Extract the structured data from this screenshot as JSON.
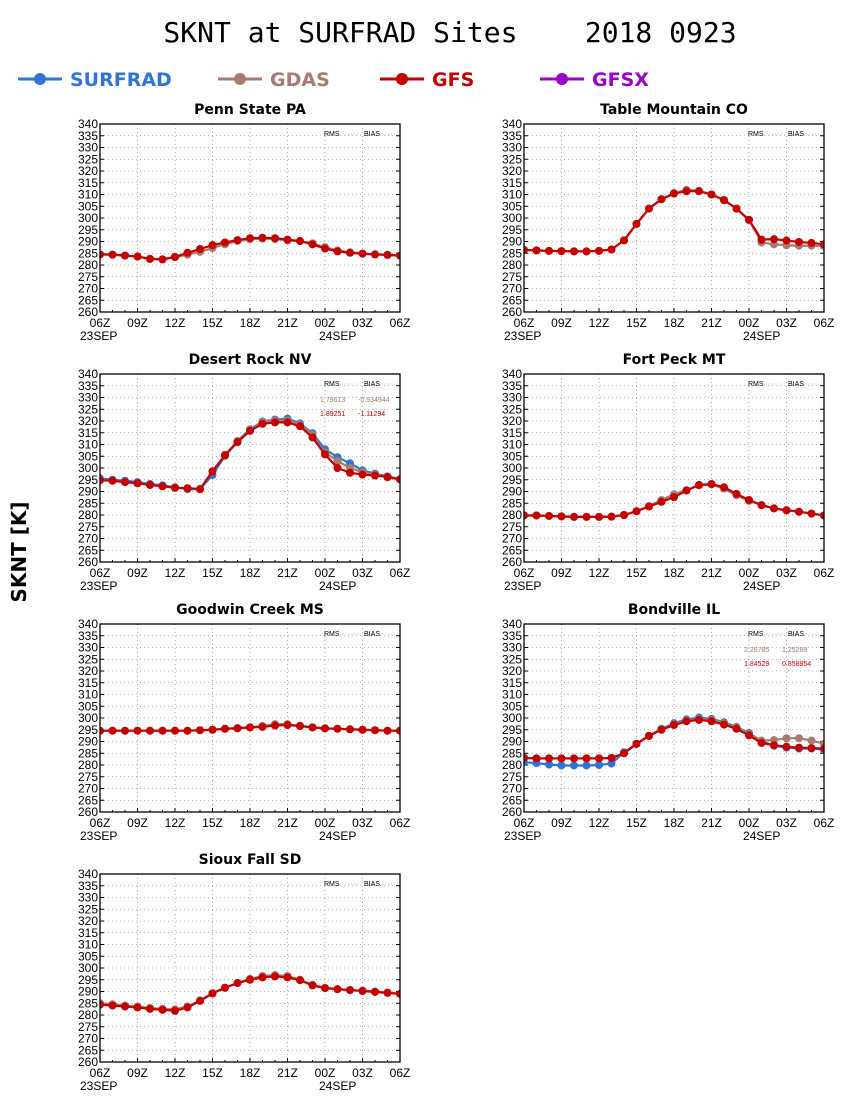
{
  "title": "SKNT at SURFRAD Sites    2018 0923",
  "ylabel": "SKNT [K]",
  "legend": [
    {
      "name": "SURFRAD",
      "color": "#2f74d6"
    },
    {
      "name": "GDAS",
      "color": "#a87a70"
    },
    {
      "name": "GFS",
      "color": "#c40000"
    },
    {
      "name": "GFSX",
      "color": "#9a00c8"
    }
  ],
  "stats_labels": {
    "rms": "RMS",
    "bias": "BIAS"
  },
  "chart_data": [
    {
      "type": "line",
      "title": "Penn State PA",
      "x": [
        0,
        1,
        2,
        3,
        4,
        5,
        6,
        7,
        8,
        9,
        10,
        11,
        12,
        13,
        14,
        15,
        16,
        17,
        18,
        19,
        20,
        21,
        22,
        23,
        24
      ],
      "xtick_labels": [
        "06Z",
        "09Z",
        "12Z",
        "15Z",
        "18Z",
        "21Z",
        "00Z",
        "03Z",
        "06Z"
      ],
      "date_labels": [
        "23SEP",
        "24SEP"
      ],
      "ylim": [
        260,
        340
      ],
      "yticks": [
        260,
        265,
        270,
        275,
        280,
        285,
        290,
        295,
        300,
        305,
        310,
        315,
        320,
        325,
        330,
        335,
        340
      ],
      "grid": true,
      "stats": [],
      "series": [
        {
          "name": "GDAS",
          "values": [
            284.5,
            284.4,
            284.0,
            283.6,
            282.6,
            282.4,
            283.4,
            284.4,
            285.6,
            287.2,
            288.8,
            290.2,
            291.0,
            291.2,
            291.0,
            290.5,
            290.2,
            289.2,
            287.6,
            286.2,
            285.4,
            284.9,
            284.5,
            284.3,
            284.0
          ]
        },
        {
          "name": "GFS",
          "values": [
            284.5,
            284.4,
            284.0,
            283.6,
            282.6,
            282.4,
            283.4,
            285.2,
            286.8,
            288.5,
            289.6,
            290.6,
            291.4,
            291.6,
            291.4,
            290.8,
            290.2,
            288.8,
            287.0,
            285.8,
            285.2,
            284.8,
            284.5,
            284.3,
            284.0
          ]
        }
      ]
    },
    {
      "type": "line",
      "title": "Table Mountain CO",
      "x": [
        0,
        1,
        2,
        3,
        4,
        5,
        6,
        7,
        8,
        9,
        10,
        11,
        12,
        13,
        14,
        15,
        16,
        17,
        18,
        19,
        20,
        21,
        22,
        23,
        24
      ],
      "xtick_labels": [
        "06Z",
        "09Z",
        "12Z",
        "15Z",
        "18Z",
        "21Z",
        "00Z",
        "03Z",
        "06Z"
      ],
      "date_labels": [
        "23SEP",
        "24SEP"
      ],
      "ylim": [
        260,
        340
      ],
      "yticks": [
        260,
        265,
        270,
        275,
        280,
        285,
        290,
        295,
        300,
        305,
        310,
        315,
        320,
        325,
        330,
        335,
        340
      ],
      "grid": true,
      "stats": [],
      "series": [
        {
          "name": "GDAS",
          "values": [
            286.4,
            286.2,
            286.0,
            285.9,
            285.8,
            285.8,
            286.0,
            286.6,
            290.5,
            297.5,
            304.0,
            308.0,
            310.6,
            312.0,
            311.6,
            310.0,
            307.6,
            304.0,
            299.2,
            289.6,
            288.8,
            288.4,
            288.2,
            288.2,
            288.0
          ]
        },
        {
          "name": "GFS",
          "values": [
            286.4,
            286.2,
            286.0,
            285.9,
            285.8,
            285.8,
            286.0,
            286.6,
            290.5,
            297.5,
            304.0,
            308.0,
            310.4,
            311.4,
            311.4,
            310.0,
            307.6,
            304.0,
            299.2,
            290.8,
            291.0,
            290.4,
            289.8,
            289.4,
            288.8
          ]
        }
      ]
    },
    {
      "type": "line",
      "title": "Desert Rock NV",
      "x": [
        0,
        1,
        2,
        3,
        4,
        5,
        6,
        7,
        8,
        9,
        10,
        11,
        12,
        13,
        14,
        15,
        16,
        17,
        18,
        19,
        20,
        21,
        22,
        23,
        24
      ],
      "xtick_labels": [
        "06Z",
        "09Z",
        "12Z",
        "15Z",
        "18Z",
        "21Z",
        "00Z",
        "03Z",
        "06Z"
      ],
      "date_labels": [
        "23SEP",
        "24SEP"
      ],
      "ylim": [
        260,
        340
      ],
      "yticks": [
        260,
        265,
        270,
        275,
        280,
        285,
        290,
        295,
        300,
        305,
        310,
        315,
        320,
        325,
        330,
        335,
        340
      ],
      "grid": true,
      "stats": [
        {
          "rms": "1.79613",
          "bias": "-0.934944",
          "color": "#a87a70"
        },
        {
          "rms": "1.89251",
          "bias": "-1.11294",
          "color": "#c40000"
        }
      ],
      "series": [
        {
          "name": "SURFRAD",
          "values": [
            295.6,
            295.0,
            294.6,
            294.0,
            293.2,
            292.6,
            291.8,
            291.0,
            291.0,
            297.0,
            305.2,
            311.5,
            316.5,
            319.8,
            320.6,
            321.0,
            319.0,
            314.8,
            308.0,
            304.6,
            302.0,
            299.0,
            297.6,
            296.4,
            295.2
          ]
        },
        {
          "name": "GDAS",
          "values": [
            295.0,
            294.6,
            294.0,
            293.5,
            292.8,
            292.2,
            291.6,
            291.4,
            291.0,
            298.6,
            305.6,
            311.4,
            316.2,
            319.6,
            320.2,
            320.2,
            318.6,
            314.2,
            306.6,
            303.0,
            300.0,
            298.2,
            297.2,
            296.0,
            295.2
          ]
        },
        {
          "name": "GFS",
          "values": [
            294.8,
            294.6,
            294.0,
            293.5,
            292.8,
            292.2,
            291.6,
            291.4,
            291.0,
            298.6,
            305.4,
            311.0,
            315.8,
            318.8,
            319.4,
            319.4,
            317.8,
            313.0,
            305.8,
            300.0,
            298.0,
            297.2,
            296.8,
            296.2,
            295.2
          ]
        }
      ]
    },
    {
      "type": "line",
      "title": "Fort Peck MT",
      "x": [
        0,
        1,
        2,
        3,
        4,
        5,
        6,
        7,
        8,
        9,
        10,
        11,
        12,
        13,
        14,
        15,
        16,
        17,
        18,
        19,
        20,
        21,
        22,
        23,
        24
      ],
      "xtick_labels": [
        "06Z",
        "09Z",
        "12Z",
        "15Z",
        "18Z",
        "21Z",
        "00Z",
        "03Z",
        "06Z"
      ],
      "date_labels": [
        "23SEP",
        "24SEP"
      ],
      "ylim": [
        260,
        340
      ],
      "yticks": [
        260,
        265,
        270,
        275,
        280,
        285,
        290,
        295,
        300,
        305,
        310,
        315,
        320,
        325,
        330,
        335,
        340
      ],
      "grid": true,
      "stats": [],
      "series": [
        {
          "name": "GDAS",
          "values": [
            279.8,
            279.8,
            279.6,
            279.4,
            279.2,
            279.2,
            279.2,
            279.3,
            280.0,
            281.6,
            283.8,
            286.4,
            288.8,
            290.6,
            292.6,
            293.0,
            291.2,
            288.4,
            286.0,
            284.2,
            282.8,
            282.0,
            281.4,
            280.6,
            279.8
          ]
        },
        {
          "name": "GFS",
          "values": [
            279.8,
            279.8,
            279.6,
            279.4,
            279.2,
            279.2,
            279.2,
            279.3,
            280.0,
            281.6,
            283.6,
            285.6,
            287.6,
            290.4,
            292.8,
            293.2,
            291.8,
            289.0,
            286.4,
            284.2,
            282.8,
            282.0,
            281.4,
            280.6,
            279.8
          ]
        }
      ]
    },
    {
      "type": "line",
      "title": "Goodwin Creek MS",
      "x": [
        0,
        1,
        2,
        3,
        4,
        5,
        6,
        7,
        8,
        9,
        10,
        11,
        12,
        13,
        14,
        15,
        16,
        17,
        18,
        19,
        20,
        21,
        22,
        23,
        24
      ],
      "xtick_labels": [
        "06Z",
        "09Z",
        "12Z",
        "15Z",
        "18Z",
        "21Z",
        "00Z",
        "03Z",
        "06Z"
      ],
      "date_labels": [
        "23SEP",
        "24SEP"
      ],
      "ylim": [
        260,
        340
      ],
      "yticks": [
        260,
        265,
        270,
        275,
        280,
        285,
        290,
        295,
        300,
        305,
        310,
        315,
        320,
        325,
        330,
        335,
        340
      ],
      "grid": true,
      "stats": [],
      "series": [
        {
          "name": "GDAS",
          "values": [
            294.6,
            294.6,
            294.6,
            294.6,
            294.6,
            294.6,
            294.6,
            294.6,
            294.8,
            295.0,
            295.4,
            295.8,
            296.0,
            296.6,
            297.4,
            297.4,
            296.6,
            296.0,
            295.6,
            295.4,
            295.2,
            295.0,
            294.8,
            294.6,
            294.6
          ]
        },
        {
          "name": "GFS",
          "values": [
            294.6,
            294.6,
            294.6,
            294.6,
            294.6,
            294.6,
            294.6,
            294.6,
            294.8,
            295.0,
            295.4,
            295.6,
            296.0,
            296.2,
            296.8,
            297.0,
            296.6,
            296.0,
            295.6,
            295.4,
            295.2,
            295.0,
            294.8,
            294.6,
            294.6
          ]
        }
      ]
    },
    {
      "type": "line",
      "title": "Bondville IL",
      "x": [
        0,
        1,
        2,
        3,
        4,
        5,
        6,
        7,
        8,
        9,
        10,
        11,
        12,
        13,
        14,
        15,
        16,
        17,
        18,
        19,
        20,
        21,
        22,
        23,
        24
      ],
      "xtick_labels": [
        "06Z",
        "09Z",
        "12Z",
        "15Z",
        "18Z",
        "21Z",
        "00Z",
        "03Z",
        "06Z"
      ],
      "date_labels": [
        "23SEP",
        "24SEP"
      ],
      "ylim": [
        260,
        340
      ],
      "yticks": [
        260,
        265,
        270,
        275,
        280,
        285,
        290,
        295,
        300,
        305,
        310,
        315,
        320,
        325,
        330,
        335,
        340
      ],
      "grid": true,
      "stats": [
        {
          "rms": "2.25785",
          "bias": "1.25288",
          "color": "#a87a70"
        },
        {
          "rms": "1.84529",
          "bias": "0.858854",
          "color": "#c40000"
        }
      ],
      "series": [
        {
          "name": "SURFRAD",
          "values": [
            281.2,
            280.8,
            280.2,
            279.8,
            279.8,
            279.8,
            280.0,
            280.6,
            285.4,
            289.0,
            292.4,
            295.4,
            297.8,
            299.4,
            300.2,
            299.6,
            298.2,
            296.2,
            293.6,
            290.2,
            288.2,
            287.4,
            287.0,
            287.0,
            286.6
          ]
        },
        {
          "name": "GDAS",
          "values": [
            283.0,
            282.8,
            282.8,
            282.8,
            282.8,
            282.8,
            282.8,
            283.0,
            285.0,
            289.0,
            292.4,
            295.2,
            297.4,
            299.0,
            299.6,
            299.2,
            297.8,
            296.0,
            293.2,
            290.4,
            290.6,
            291.4,
            291.4,
            290.4,
            289.0
          ]
        },
        {
          "name": "GFS",
          "values": [
            283.0,
            282.8,
            282.8,
            282.8,
            282.8,
            282.8,
            282.8,
            283.0,
            285.0,
            289.0,
            292.4,
            295.0,
            297.0,
            298.6,
            299.2,
            298.6,
            297.2,
            295.4,
            292.6,
            289.4,
            288.4,
            287.8,
            287.4,
            287.2,
            287.0
          ]
        }
      ]
    },
    {
      "type": "line",
      "title": "Sioux Fall SD",
      "x": [
        0,
        1,
        2,
        3,
        4,
        5,
        6,
        7,
        8,
        9,
        10,
        11,
        12,
        13,
        14,
        15,
        16,
        17,
        18,
        19,
        20,
        21,
        22,
        23,
        24
      ],
      "xtick_labels": [
        "06Z",
        "09Z",
        "12Z",
        "15Z",
        "18Z",
        "21Z",
        "00Z",
        "03Z",
        "06Z"
      ],
      "date_labels": [
        "23SEP",
        "24SEP"
      ],
      "ylim": [
        260,
        340
      ],
      "yticks": [
        260,
        265,
        270,
        275,
        280,
        285,
        290,
        295,
        300,
        305,
        310,
        315,
        320,
        325,
        330,
        335,
        340
      ],
      "grid": true,
      "stats": [],
      "series": [
        {
          "name": "GDAS",
          "values": [
            285.0,
            284.6,
            284.0,
            283.6,
            283.0,
            282.6,
            282.4,
            283.6,
            286.2,
            289.2,
            291.6,
            293.6,
            295.4,
            296.6,
            297.0,
            296.6,
            295.0,
            292.8,
            291.6,
            291.0,
            290.6,
            290.4,
            290.0,
            289.6,
            289.0
          ]
        },
        {
          "name": "GFS",
          "values": [
            284.4,
            284.0,
            283.6,
            283.2,
            282.6,
            282.2,
            281.8,
            283.2,
            286.0,
            289.2,
            291.6,
            293.6,
            295.0,
            296.0,
            296.4,
            296.0,
            294.8,
            292.6,
            291.4,
            291.0,
            290.6,
            290.2,
            289.8,
            289.4,
            289.0
          ]
        }
      ]
    }
  ]
}
